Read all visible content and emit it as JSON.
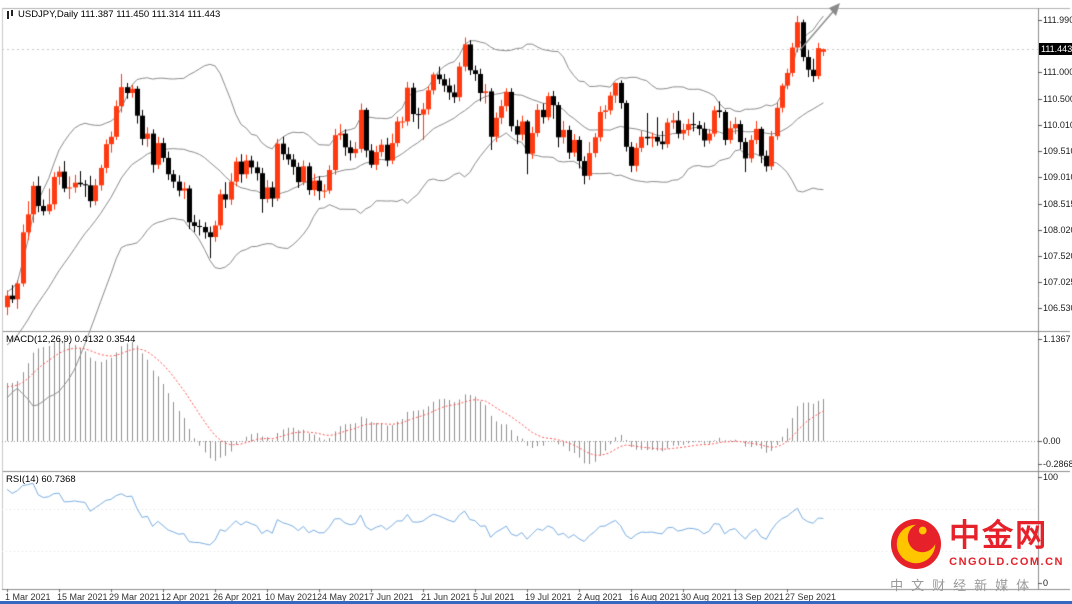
{
  "chart": {
    "title": "USDJPY,Daily 111.387 111.450 111.314 111.443",
    "symbol": "USDJPY",
    "timeframe": "Daily",
    "open": "111.387",
    "high": "111.450",
    "low": "111.314",
    "close": "111.443",
    "current_price": "111.443",
    "colors": {
      "up": "#ff3a10",
      "down": "#000000",
      "bollinger": "#8a8a8a",
      "macd_hist": "#909090",
      "macd_signal": "#ff5555",
      "rsi": "#7aade0",
      "panel_border": "#8c8c8c",
      "price_line": "#c8c8c8",
      "bg": "#ffffff",
      "bottom_bar": "#3566c0"
    }
  },
  "indicators": {
    "macd_label": "MACD(12,26,9) 0.4132 0.3544",
    "rsi_label": "RSI(14) 60.7368",
    "macd_params": {
      "fast": 12,
      "slow": 26,
      "signal": 9
    },
    "rsi_period": 14,
    "bollinger": {
      "period": 20,
      "deviation": 2
    }
  },
  "axes": {
    "price_ticks": [
      "111.990",
      "111.000",
      "110.500",
      "110.010",
      "109.510",
      "109.010",
      "108.515",
      "108.020",
      "107.520",
      "107.025",
      "106.530"
    ],
    "macd_ticks": [
      "1.1367",
      "0.00",
      "-0.2868"
    ],
    "rsi_ticks": [
      "100",
      "0"
    ],
    "date_tick_labels": [
      "1 Mar 2021",
      "15 Mar 2021",
      "29 Mar 2021",
      "12 Apr 2021",
      "26 Apr 2021",
      "10 May 2021",
      "24 May 2021",
      "7 Jun 2021",
      "21 Jun 2021",
      "5 Jul 2021",
      "19 Jul 2021",
      "2 Aug 2021",
      "16 Aug 2021",
      "30 Aug 2021",
      "13 Sep 2021",
      "27 Sep 2021"
    ],
    "date_tick_indices": [
      0,
      10,
      20,
      30,
      40,
      50,
      60,
      70,
      80,
      90,
      100,
      110,
      120,
      130,
      140,
      150
    ]
  },
  "watermark": {
    "name": "中金网",
    "domain": "CNGOLD.COM.CN",
    "slogan": "中文财经新媒体",
    "brand_red": "#e62129",
    "gold": "#ffc600"
  },
  "chart_data": {
    "type": "candlestick",
    "symbol": "USDJPY",
    "period": "Daily",
    "start_date": "1 Mar 2021",
    "price_range": [
      106.1,
      112.22
    ],
    "candles_ohlc": [
      [
        106.55,
        106.87,
        106.4,
        106.77
      ],
      [
        106.77,
        106.97,
        106.63,
        106.7
      ],
      [
        106.7,
        107.06,
        106.52,
        107.0
      ],
      [
        107.0,
        108.12,
        106.94,
        107.97
      ],
      [
        107.97,
        108.56,
        107.82,
        108.31
      ],
      [
        108.31,
        108.93,
        108.15,
        108.85
      ],
      [
        108.85,
        109.03,
        108.35,
        108.47
      ],
      [
        108.47,
        108.59,
        108.29,
        108.37
      ],
      [
        108.37,
        108.8,
        108.31,
        108.5
      ],
      [
        108.5,
        109.11,
        108.4,
        109.02
      ],
      [
        109.02,
        109.22,
        108.87,
        109.12
      ],
      [
        109.12,
        109.32,
        108.73,
        108.8
      ],
      [
        108.8,
        109.03,
        108.6,
        108.82
      ],
      [
        108.82,
        109.06,
        108.72,
        108.91
      ],
      [
        108.91,
        109.13,
        108.83,
        108.88
      ],
      [
        108.88,
        108.96,
        108.64,
        108.86
      ],
      [
        108.86,
        109.04,
        108.44,
        108.56
      ],
      [
        108.56,
        108.98,
        108.48,
        108.86
      ],
      [
        108.86,
        109.25,
        108.76,
        109.19
      ],
      [
        109.19,
        109.73,
        109.09,
        109.64
      ],
      [
        109.64,
        109.88,
        109.48,
        109.78
      ],
      [
        109.78,
        110.47,
        109.72,
        110.36
      ],
      [
        110.36,
        110.97,
        110.24,
        110.72
      ],
      [
        110.72,
        110.8,
        110.5,
        110.61
      ],
      [
        110.61,
        110.76,
        110.52,
        110.69
      ],
      [
        110.69,
        110.74,
        110.03,
        110.18
      ],
      [
        110.18,
        110.29,
        109.62,
        109.74
      ],
      [
        109.74,
        109.96,
        109.59,
        109.84
      ],
      [
        109.84,
        109.92,
        109.1,
        109.25
      ],
      [
        109.25,
        109.78,
        109.17,
        109.66
      ],
      [
        109.66,
        109.76,
        109.3,
        109.38
      ],
      [
        109.38,
        109.5,
        108.96,
        109.07
      ],
      [
        109.07,
        109.15,
        108.81,
        108.93
      ],
      [
        108.93,
        109.05,
        108.65,
        108.76
      ],
      [
        108.76,
        108.92,
        108.6,
        108.8
      ],
      [
        108.8,
        108.86,
        108.03,
        108.16
      ],
      [
        108.16,
        108.3,
        107.97,
        108.09
      ],
      [
        108.09,
        108.21,
        107.91,
        108.07
      ],
      [
        108.07,
        108.16,
        107.85,
        107.97
      ],
      [
        107.97,
        108.08,
        107.48,
        107.88
      ],
      [
        107.88,
        108.19,
        107.79,
        108.1
      ],
      [
        108.1,
        108.78,
        108.02,
        108.69
      ],
      [
        108.69,
        108.92,
        108.43,
        108.59
      ],
      [
        108.59,
        109.09,
        108.49,
        108.93
      ],
      [
        108.93,
        109.39,
        108.84,
        109.31
      ],
      [
        109.31,
        109.45,
        108.91,
        109.07
      ],
      [
        109.07,
        109.44,
        108.99,
        109.33
      ],
      [
        109.33,
        109.42,
        109.08,
        109.2
      ],
      [
        109.2,
        109.31,
        108.95,
        109.09
      ],
      [
        109.09,
        109.19,
        108.34,
        108.6
      ],
      [
        108.6,
        108.96,
        108.53,
        108.82
      ],
      [
        108.82,
        108.93,
        108.45,
        108.61
      ],
      [
        108.61,
        109.74,
        108.56,
        109.65
      ],
      [
        109.65,
        109.78,
        109.34,
        109.45
      ],
      [
        109.45,
        109.58,
        109.25,
        109.35
      ],
      [
        109.35,
        109.45,
        109.06,
        109.21
      ],
      [
        109.21,
        109.29,
        108.81,
        108.92
      ],
      [
        108.92,
        109.33,
        108.86,
        109.22
      ],
      [
        109.22,
        109.29,
        108.68,
        108.77
      ],
      [
        108.77,
        109.08,
        108.66,
        108.95
      ],
      [
        108.95,
        109.03,
        108.58,
        108.75
      ],
      [
        108.75,
        108.88,
        108.62,
        108.76
      ],
      [
        108.76,
        109.24,
        108.7,
        109.15
      ],
      [
        109.15,
        109.93,
        109.06,
        109.81
      ],
      [
        109.81,
        110.02,
        109.72,
        109.84
      ],
      [
        109.84,
        109.92,
        109.42,
        109.58
      ],
      [
        109.58,
        109.71,
        109.33,
        109.47
      ],
      [
        109.47,
        109.68,
        109.38,
        109.55
      ],
      [
        109.55,
        110.41,
        109.48,
        110.29
      ],
      [
        110.29,
        110.33,
        109.39,
        109.52
      ],
      [
        109.52,
        109.64,
        109.19,
        109.25
      ],
      [
        109.25,
        109.61,
        109.15,
        109.49
      ],
      [
        109.49,
        109.73,
        109.4,
        109.63
      ],
      [
        109.63,
        109.76,
        109.22,
        109.33
      ],
      [
        109.33,
        109.84,
        109.26,
        109.66
      ],
      [
        109.66,
        110.16,
        109.59,
        110.07
      ],
      [
        110.07,
        110.16,
        109.94,
        110.07
      ],
      [
        110.07,
        110.82,
        109.99,
        110.71
      ],
      [
        110.71,
        110.8,
        110.06,
        110.21
      ],
      [
        110.21,
        110.33,
        109.93,
        110.2
      ],
      [
        110.2,
        110.42,
        109.72,
        110.3
      ],
      [
        110.3,
        110.74,
        110.2,
        110.66
      ],
      [
        110.66,
        111.0,
        110.58,
        110.96
      ],
      [
        110.96,
        111.11,
        110.78,
        110.87
      ],
      [
        110.87,
        110.97,
        110.63,
        110.75
      ],
      [
        110.75,
        110.89,
        110.48,
        110.62
      ],
      [
        110.62,
        110.77,
        110.42,
        110.53
      ],
      [
        110.53,
        111.19,
        110.45,
        111.11
      ],
      [
        111.11,
        111.66,
        111.02,
        111.53
      ],
      [
        111.53,
        111.61,
        110.95,
        111.04
      ],
      [
        111.04,
        111.13,
        110.84,
        110.97
      ],
      [
        110.97,
        111.07,
        110.45,
        110.61
      ],
      [
        110.61,
        110.78,
        110.41,
        110.64
      ],
      [
        110.64,
        110.7,
        109.53,
        109.78
      ],
      [
        109.78,
        110.24,
        109.68,
        110.14
      ],
      [
        110.14,
        110.48,
        110.02,
        110.36
      ],
      [
        110.36,
        110.7,
        110.26,
        110.63
      ],
      [
        110.63,
        110.7,
        109.88,
        109.98
      ],
      [
        109.98,
        110.1,
        109.64,
        109.82
      ],
      [
        109.82,
        110.18,
        109.71,
        110.07
      ],
      [
        110.07,
        110.1,
        109.07,
        109.46
      ],
      [
        109.46,
        109.97,
        109.36,
        109.85
      ],
      [
        109.85,
        110.4,
        109.78,
        110.29
      ],
      [
        110.29,
        110.41,
        110.03,
        110.15
      ],
      [
        110.15,
        110.62,
        110.09,
        110.55
      ],
      [
        110.55,
        110.65,
        110.12,
        110.38
      ],
      [
        110.38,
        110.44,
        109.58,
        109.77
      ],
      [
        109.77,
        110.08,
        109.65,
        109.91
      ],
      [
        109.91,
        109.99,
        109.36,
        109.48
      ],
      [
        109.48,
        109.83,
        109.4,
        109.72
      ],
      [
        109.72,
        109.79,
        109.18,
        109.32
      ],
      [
        109.32,
        109.41,
        108.88,
        109.04
      ],
      [
        109.04,
        109.68,
        108.96,
        109.47
      ],
      [
        109.47,
        109.85,
        109.39,
        109.77
      ],
      [
        109.77,
        110.36,
        109.69,
        110.25
      ],
      [
        110.25,
        110.38,
        110.12,
        110.28
      ],
      [
        110.28,
        110.63,
        110.2,
        110.56
      ],
      [
        110.56,
        110.81,
        110.42,
        110.8
      ],
      [
        110.8,
        110.85,
        110.31,
        110.42
      ],
      [
        110.42,
        110.47,
        109.5,
        109.59
      ],
      [
        109.59,
        109.68,
        109.11,
        109.23
      ],
      [
        109.23,
        109.66,
        109.12,
        109.57
      ],
      [
        109.57,
        109.89,
        109.49,
        109.78
      ],
      [
        109.78,
        110.23,
        109.62,
        109.75
      ],
      [
        109.75,
        109.86,
        109.58,
        109.78
      ],
      [
        109.78,
        110.15,
        109.61,
        109.69
      ],
      [
        109.69,
        109.89,
        109.54,
        109.64
      ],
      [
        109.64,
        110.13,
        109.57,
        110.05
      ],
      [
        110.05,
        110.23,
        109.93,
        110.09
      ],
      [
        110.09,
        110.27,
        109.75,
        109.84
      ],
      [
        109.84,
        110.03,
        109.72,
        109.91
      ],
      [
        109.91,
        110.12,
        109.8,
        110.02
      ],
      [
        110.02,
        110.24,
        109.88,
        110.0
      ],
      [
        110.0,
        110.08,
        109.81,
        109.93
      ],
      [
        109.93,
        110.05,
        109.59,
        109.71
      ],
      [
        109.71,
        109.93,
        109.65,
        109.84
      ],
      [
        109.84,
        110.36,
        109.78,
        110.28
      ],
      [
        110.28,
        110.45,
        110.14,
        110.25
      ],
      [
        110.25,
        110.29,
        109.62,
        109.72
      ],
      [
        109.72,
        110.08,
        109.65,
        109.94
      ],
      [
        109.94,
        110.15,
        109.83,
        110.02
      ],
      [
        110.02,
        110.09,
        109.54,
        109.68
      ],
      [
        109.68,
        109.76,
        109.11,
        109.37
      ],
      [
        109.37,
        109.81,
        109.29,
        109.72
      ],
      [
        109.72,
        110.08,
        109.64,
        109.93
      ],
      [
        109.93,
        109.97,
        109.28,
        109.42
      ],
      [
        109.42,
        109.52,
        109.12,
        109.22
      ],
      [
        109.22,
        109.89,
        109.15,
        109.79
      ],
      [
        109.79,
        110.43,
        109.72,
        110.33
      ],
      [
        110.33,
        110.79,
        110.24,
        110.75
      ],
      [
        110.75,
        111.07,
        110.68,
        110.99
      ],
      [
        110.99,
        111.56,
        110.92,
        111.47
      ],
      [
        111.47,
        112.07,
        111.38,
        111.95
      ],
      [
        111.95,
        112.0,
        111.21,
        111.29
      ],
      [
        111.29,
        111.42,
        110.91,
        111.05
      ],
      [
        111.05,
        111.26,
        110.82,
        110.93
      ],
      [
        110.93,
        111.56,
        110.87,
        111.46
      ],
      [
        111.39,
        111.45,
        111.31,
        111.44
      ]
    ]
  }
}
